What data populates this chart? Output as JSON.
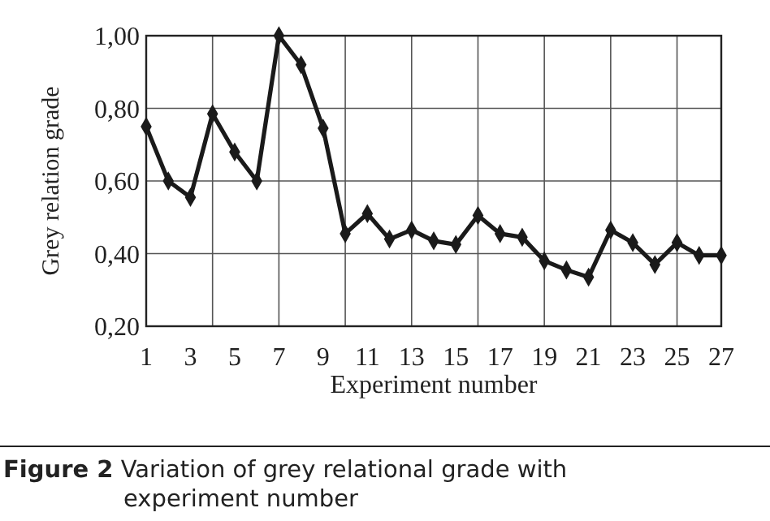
{
  "chart_data": {
    "type": "line",
    "title": "Figure 2 Variation of grey relational grade with experiment number",
    "xlabel": "Experiment number",
    "ylabel": "Grey relation grade",
    "x": [
      1,
      2,
      3,
      4,
      5,
      6,
      7,
      8,
      9,
      10,
      11,
      12,
      13,
      14,
      15,
      16,
      17,
      18,
      19,
      20,
      21,
      22,
      23,
      24,
      25,
      26,
      27
    ],
    "series": [
      {
        "color": "#1a1a1a",
        "values": [
          0.75,
          0.6,
          0.555,
          0.785,
          0.68,
          0.6,
          1.0,
          0.92,
          0.745,
          0.455,
          0.51,
          0.44,
          0.465,
          0.435,
          0.425,
          0.505,
          0.455,
          0.445,
          0.38,
          0.355,
          0.335,
          0.465,
          0.43,
          0.37,
          0.43,
          0.395,
          0.395
        ]
      }
    ],
    "xlim": [
      1,
      27
    ],
    "ylim": [
      0.2,
      1.0
    ],
    "xticks": [
      1,
      3,
      {
        "value": 4,
        "label": null
      },
      5,
      7,
      9,
      {
        "value": 10,
        "label": null
      },
      11,
      13,
      15,
      {
        "value": 16,
        "label": null
      },
      17,
      19,
      21,
      {
        "value": 22,
        "label": null
      },
      23,
      25,
      27
    ],
    "yticks": [
      {
        "value": 0.2,
        "label": "0,20"
      },
      {
        "value": 0.4,
        "label": "0,40"
      },
      {
        "value": 0.6,
        "label": "0,60"
      },
      {
        "value": 0.8,
        "label": "0,80"
      },
      {
        "value": 1.0,
        "label": "1,00"
      }
    ],
    "grid": true,
    "marker": "diamond",
    "line_style": "solid"
  }
}
